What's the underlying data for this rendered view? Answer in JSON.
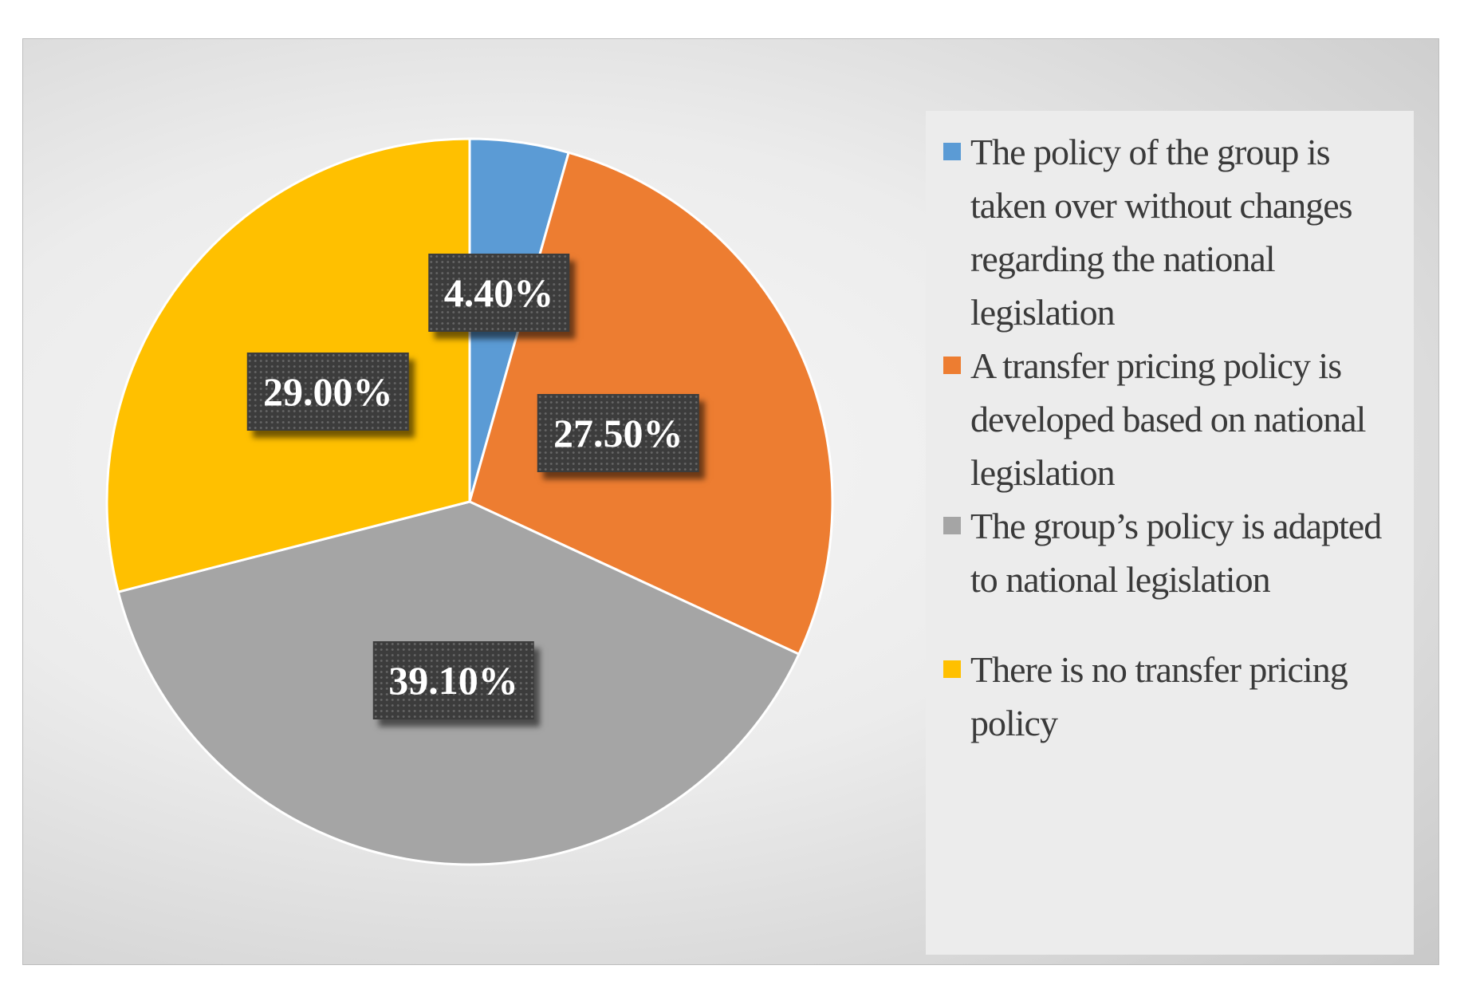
{
  "chart_data": {
    "type": "pie",
    "title": "",
    "legend_position": "right",
    "slices": [
      {
        "label": "The policy of the group is taken over without changes regarding the national legislation",
        "value": 4.4,
        "display": "4.40%",
        "color": "#5B9BD5"
      },
      {
        "label": "A transfer pricing policy is developed based on national legislation",
        "value": 27.5,
        "display": "27.50%",
        "color": "#ED7D31"
      },
      {
        "label": "The group’s policy is adapted to national legislation",
        "value": 39.1,
        "display": "39.10%",
        "color": "#A5A5A5"
      },
      {
        "label": "There is no transfer pricing policy",
        "value": 29.0,
        "display": "29.00%",
        "color": "#FFC000"
      }
    ]
  }
}
